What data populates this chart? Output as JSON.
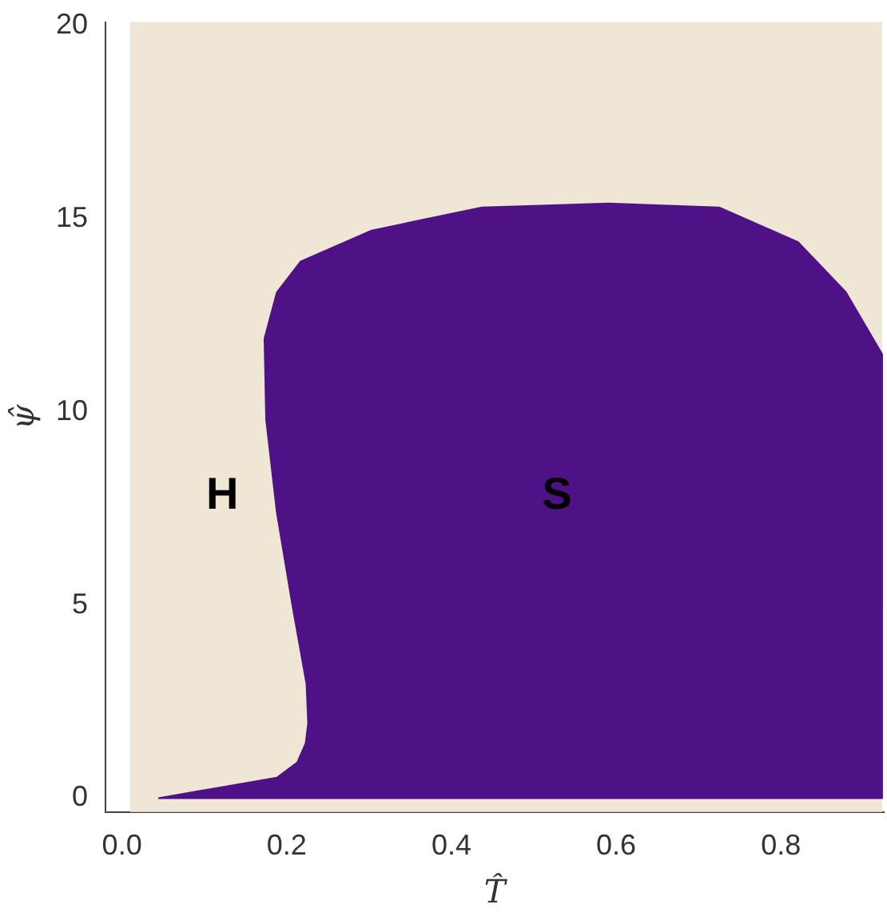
{
  "chart_data": {
    "type": "area",
    "xlabel": "T̂",
    "ylabel": "ψ̂",
    "xlim": [
      -0.02,
      0.925
    ],
    "ylim": [
      -0.36,
      20.1
    ],
    "xticks": [
      {
        "value": 0,
        "label": "0.0"
      },
      {
        "value": 0.2,
        "label": "0.2"
      },
      {
        "value": 0.4,
        "label": "0.4"
      },
      {
        "value": 0.6,
        "label": "0.6"
      },
      {
        "value": 0.8,
        "label": "0.8"
      }
    ],
    "yticks": [
      0,
      5,
      10,
      15,
      20
    ],
    "grid": false,
    "legend": false,
    "series": [
      {
        "color": "#4f1286",
        "x": [
          0.044,
          0.188,
          0.213,
          0.223,
          0.226,
          0.224,
          0.207,
          0.188,
          0.175,
          0.173,
          0.188,
          0.217,
          0.303,
          0.437,
          0.591,
          0.725,
          0.821,
          0.879,
          0.923,
          0.923,
          0.044
        ],
        "values": [
          0,
          0.53,
          0.93,
          1.42,
          1.94,
          2.96,
          4.98,
          7.4,
          9.8,
          11.9,
          13.1,
          13.9,
          14.7,
          15.3,
          15.4,
          15.3,
          14.4,
          13.1,
          11.5,
          0,
          0
        ]
      }
    ],
    "bands": [
      {
        "axis": "x",
        "from": 0.01,
        "to": 0.923,
        "color": "#f0e6d6"
      }
    ],
    "annotations": [
      "H",
      "S"
    ]
  }
}
